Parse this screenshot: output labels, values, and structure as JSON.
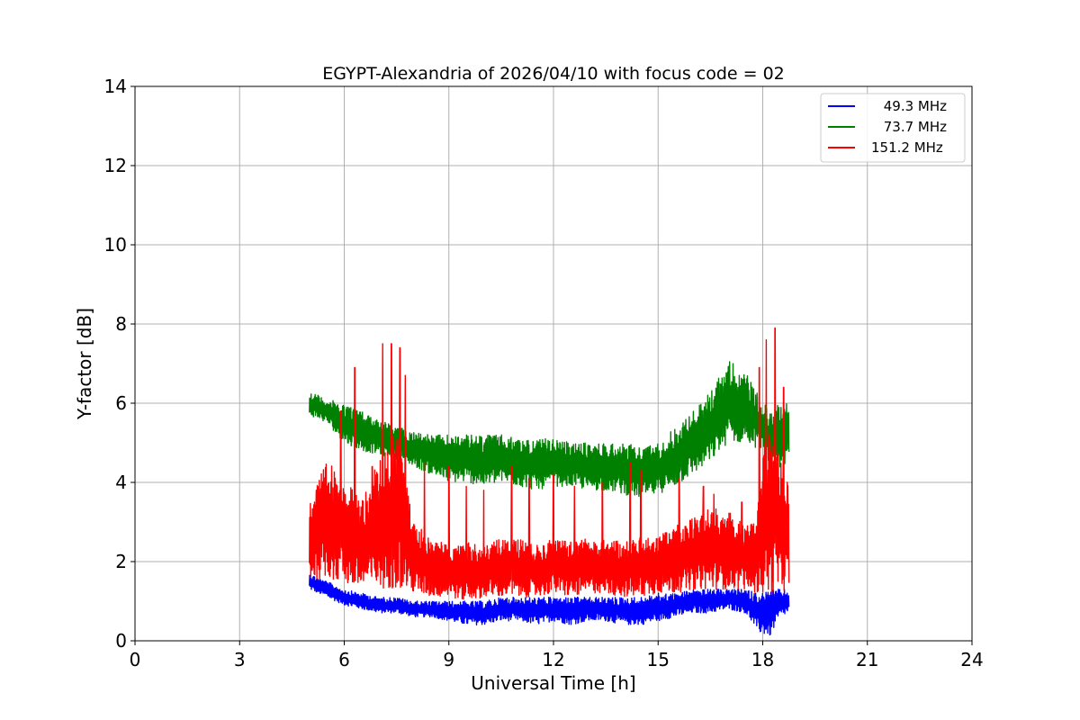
{
  "chart_data": {
    "type": "line",
    "title": "EGYPT-Alexandria of 2026/04/10 with focus code = 02",
    "xlabel": "Universal Time [h]",
    "ylabel": "Y-factor [dB]",
    "xlim": [
      0,
      24
    ],
    "ylim": [
      0,
      14
    ],
    "xticks": [
      0,
      3,
      6,
      9,
      12,
      15,
      18,
      21,
      24
    ],
    "yticks": [
      0,
      2,
      4,
      6,
      8,
      10,
      12,
      14
    ],
    "grid": true,
    "legend_position": "top-right",
    "series": [
      {
        "name": " 49.3 MHz",
        "color": "#0000ff",
        "x": [
          5.0,
          5.5,
          6.0,
          6.5,
          7.0,
          7.5,
          8.0,
          8.5,
          9.0,
          9.5,
          10.0,
          10.5,
          11.0,
          11.5,
          12.0,
          12.5,
          13.0,
          13.5,
          14.0,
          14.5,
          15.0,
          15.5,
          16.0,
          16.5,
          17.0,
          17.5,
          17.9,
          18.2,
          18.5,
          18.75
        ],
        "low": [
          1.3,
          1.1,
          0.9,
          0.8,
          0.7,
          0.7,
          0.6,
          0.6,
          0.5,
          0.4,
          0.4,
          0.5,
          0.5,
          0.4,
          0.5,
          0.4,
          0.5,
          0.5,
          0.4,
          0.4,
          0.5,
          0.6,
          0.7,
          0.7,
          0.8,
          0.7,
          0.2,
          0.1,
          0.6,
          0.7
        ],
        "high": [
          1.7,
          1.5,
          1.3,
          1.2,
          1.1,
          1.1,
          1.0,
          1.0,
          1.0,
          1.0,
          1.0,
          1.1,
          1.1,
          1.1,
          1.1,
          1.1,
          1.1,
          1.1,
          1.1,
          1.1,
          1.2,
          1.2,
          1.3,
          1.3,
          1.3,
          1.3,
          1.2,
          1.3,
          1.3,
          1.3
        ]
      },
      {
        "name": " 73.7 MHz",
        "color": "#008000",
        "x": [
          5.0,
          5.5,
          6.0,
          6.5,
          7.0,
          7.5,
          8.0,
          8.5,
          9.0,
          9.5,
          10.0,
          10.5,
          11.0,
          11.5,
          12.0,
          12.5,
          13.0,
          13.5,
          14.0,
          14.5,
          15.0,
          15.5,
          16.0,
          16.5,
          17.0,
          17.5,
          18.0,
          18.3,
          18.5,
          18.75
        ],
        "low": [
          5.7,
          5.5,
          5.0,
          4.8,
          4.7,
          4.6,
          4.4,
          4.2,
          4.0,
          4.0,
          3.9,
          4.0,
          3.9,
          3.8,
          3.9,
          3.9,
          3.8,
          3.8,
          3.7,
          3.6,
          3.7,
          3.9,
          4.2,
          4.5,
          5.0,
          5.0,
          4.8,
          4.2,
          4.3,
          4.5
        ],
        "high": [
          6.3,
          6.1,
          6.0,
          5.8,
          5.6,
          5.4,
          5.3,
          5.2,
          5.2,
          5.2,
          5.2,
          5.2,
          5.1,
          5.1,
          5.1,
          5.0,
          5.0,
          5.0,
          5.0,
          4.9,
          5.0,
          5.4,
          5.8,
          6.3,
          7.1,
          6.8,
          6.0,
          5.8,
          6.1,
          6.1
        ]
      },
      {
        "name": "151.2 MHz",
        "color": "#ff0000",
        "x": [
          5.0,
          5.5,
          6.0,
          6.5,
          7.0,
          7.5,
          8.0,
          8.5,
          9.0,
          9.5,
          10.0,
          10.5,
          11.0,
          11.5,
          12.0,
          12.5,
          13.0,
          13.5,
          14.0,
          14.5,
          15.0,
          15.5,
          16.0,
          16.5,
          17.0,
          17.5,
          17.8,
          18.1,
          18.4,
          18.75
        ],
        "low": [
          1.5,
          1.6,
          1.4,
          1.3,
          1.3,
          1.3,
          1.2,
          1.1,
          1.1,
          1.0,
          1.1,
          1.1,
          1.1,
          1.1,
          1.2,
          1.1,
          1.2,
          1.2,
          1.1,
          1.1,
          1.2,
          1.2,
          1.3,
          1.3,
          1.3,
          1.3,
          1.2,
          1.1,
          1.2,
          1.3
        ],
        "high": [
          3.6,
          4.5,
          4.2,
          3.5,
          4.6,
          5.5,
          3.0,
          2.6,
          2.4,
          2.5,
          2.4,
          2.6,
          2.6,
          2.4,
          2.6,
          2.5,
          2.6,
          2.6,
          2.5,
          2.6,
          2.7,
          2.9,
          3.1,
          3.4,
          3.3,
          2.9,
          3.0,
          5.5,
          5.0,
          4.0
        ],
        "spikes": [
          [
            5.2,
            3.8
          ],
          [
            5.9,
            5.8
          ],
          [
            6.3,
            6.9
          ],
          [
            6.8,
            4.4
          ],
          [
            7.1,
            7.5
          ],
          [
            7.35,
            7.5
          ],
          [
            7.6,
            7.4
          ],
          [
            7.75,
            6.7
          ],
          [
            8.3,
            4.5
          ],
          [
            9.0,
            4.4
          ],
          [
            9.5,
            3.9
          ],
          [
            10.0,
            3.8
          ],
          [
            10.8,
            4.4
          ],
          [
            11.3,
            4.1
          ],
          [
            12.0,
            4.2
          ],
          [
            12.6,
            3.9
          ],
          [
            13.4,
            4.0
          ],
          [
            14.2,
            4.5
          ],
          [
            14.5,
            4.3
          ],
          [
            15.6,
            4.1
          ],
          [
            16.3,
            3.9
          ],
          [
            16.6,
            3.7
          ],
          [
            17.4,
            3.5
          ],
          [
            17.9,
            6.9
          ],
          [
            18.1,
            7.6
          ],
          [
            18.35,
            7.9
          ],
          [
            18.6,
            6.4
          ]
        ]
      }
    ]
  }
}
